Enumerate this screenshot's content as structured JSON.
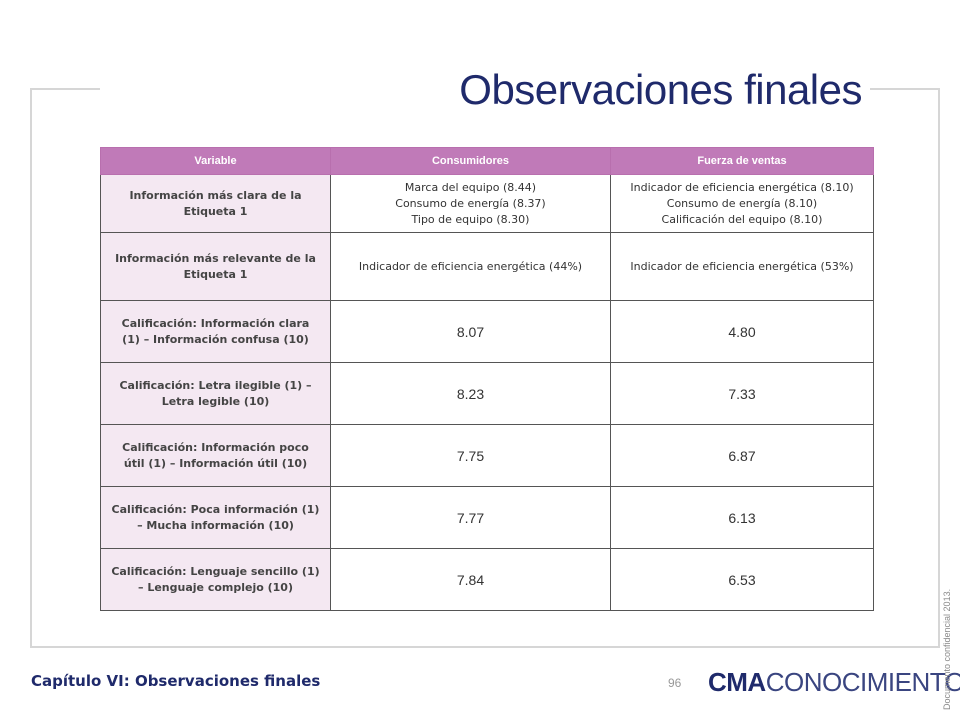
{
  "page": {
    "title": "Observaciones finales",
    "footer_title": "Capítulo VI: Observaciones finales",
    "page_number": "96",
    "logo_bold": "CMA",
    "logo_light": "CONOCIMIENTO",
    "confidential": "Documento confidencial 2013."
  },
  "table": {
    "headers": [
      "Variable",
      "Consumidores",
      "Fuerza de ventas"
    ],
    "rows": [
      {
        "variable": [
          "Información más clara de la",
          "Etiqueta 1"
        ],
        "consumidores": [
          "Marca del equipo (8.44)",
          "Consumo de energía (8.37)",
          "Tipo de equipo (8.30)"
        ],
        "fuerza": [
          "Indicador de eficiencia energética (8.10)",
          "Consumo de energía (8.10)",
          "Calificación del equipo (8.10)"
        ]
      },
      {
        "variable": [
          "Información más relevante de la",
          "Etiqueta 1"
        ],
        "consumidores": [
          "Indicador de eficiencia energética (44%)"
        ],
        "fuerza": [
          "Indicador de eficiencia energética (53%)"
        ]
      },
      {
        "variable": [
          "Calificación: Información clara",
          "(1) – Información confusa (10)"
        ],
        "consumidores": "8.07",
        "fuerza": "4.80"
      },
      {
        "variable": [
          "Calificación: Letra ilegible (1) –",
          "Letra legible (10)"
        ],
        "consumidores": "8.23",
        "fuerza": "7.33"
      },
      {
        "variable": [
          "Calificación: Información poco",
          "útil (1) – Información útil (10)"
        ],
        "consumidores": "7.75",
        "fuerza": "6.87"
      },
      {
        "variable": [
          "Calificación: Poca información (1)",
          "– Mucha información (10)"
        ],
        "consumidores": "7.77",
        "fuerza": "6.13"
      },
      {
        "variable": [
          "Calificación: Lenguaje sencillo (1)",
          "– Lenguaje complejo (10)"
        ],
        "consumidores": "7.84",
        "fuerza": "6.53"
      }
    ]
  }
}
